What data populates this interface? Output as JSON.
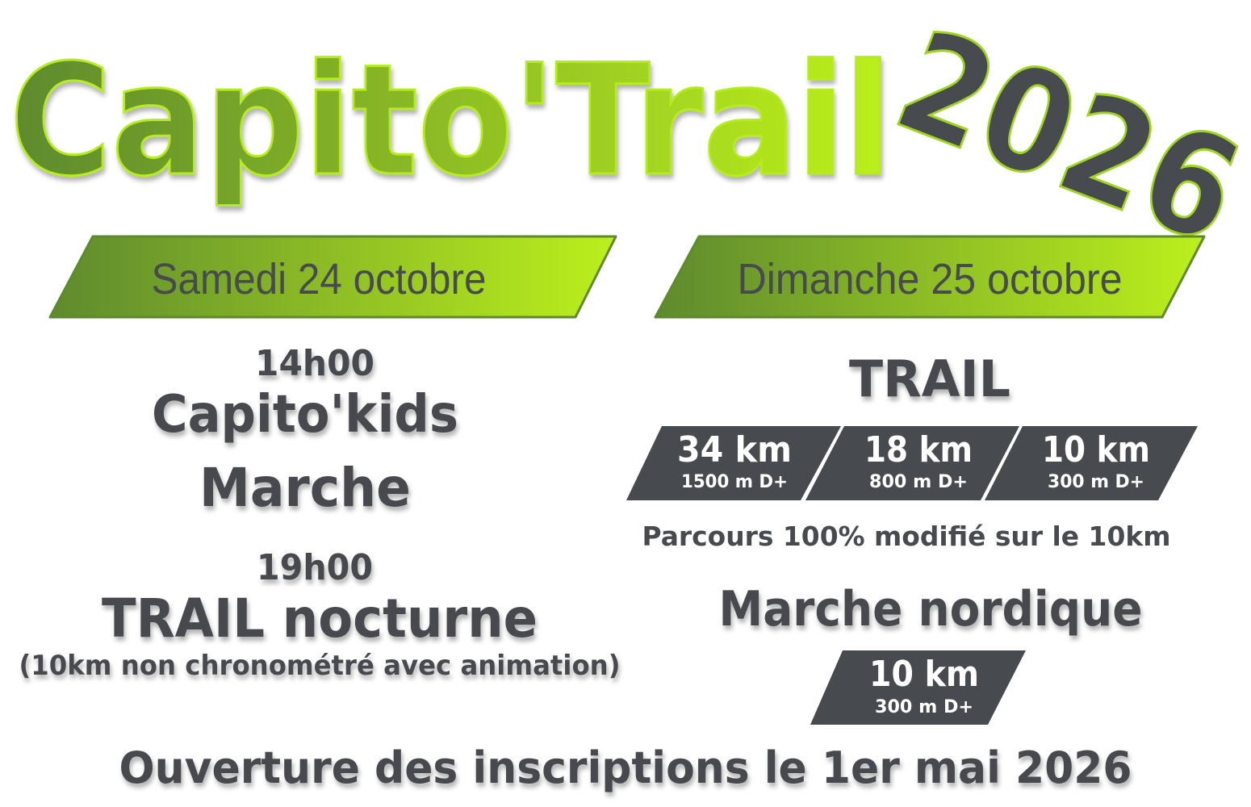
{
  "header": {
    "title": "Capito'Trail",
    "year": "2026"
  },
  "colors": {
    "green_dark": "#5e8a2e",
    "green_light": "#bdf01c",
    "text_dark": "#474a4f",
    "white": "#ffffff"
  },
  "saturday": {
    "date": "Samedi 24 octobre",
    "events": [
      {
        "time": "14h00",
        "name": "Capito'kids",
        "name2": "Marche"
      },
      {
        "time": "19h00",
        "name": "TRAIL nocturne",
        "note": "(10km non chronométré avec animation)"
      }
    ]
  },
  "sunday": {
    "date": "Dimanche 25 octobre",
    "trail_title": "TRAIL",
    "trail_distances": [
      {
        "distance": "34 km",
        "elevation": "1500 m D+"
      },
      {
        "distance": "18 km",
        "elevation": "800 m D+"
      },
      {
        "distance": "10 km",
        "elevation": "300 m D+"
      }
    ],
    "trail_note": "Parcours 100% modifié sur le 10km",
    "nordic_title": "Marche nordique",
    "nordic": {
      "distance": "10 km",
      "elevation": "300 m D+"
    }
  },
  "footer": {
    "registration": "Ouverture des inscriptions le 1er mai 2026"
  }
}
